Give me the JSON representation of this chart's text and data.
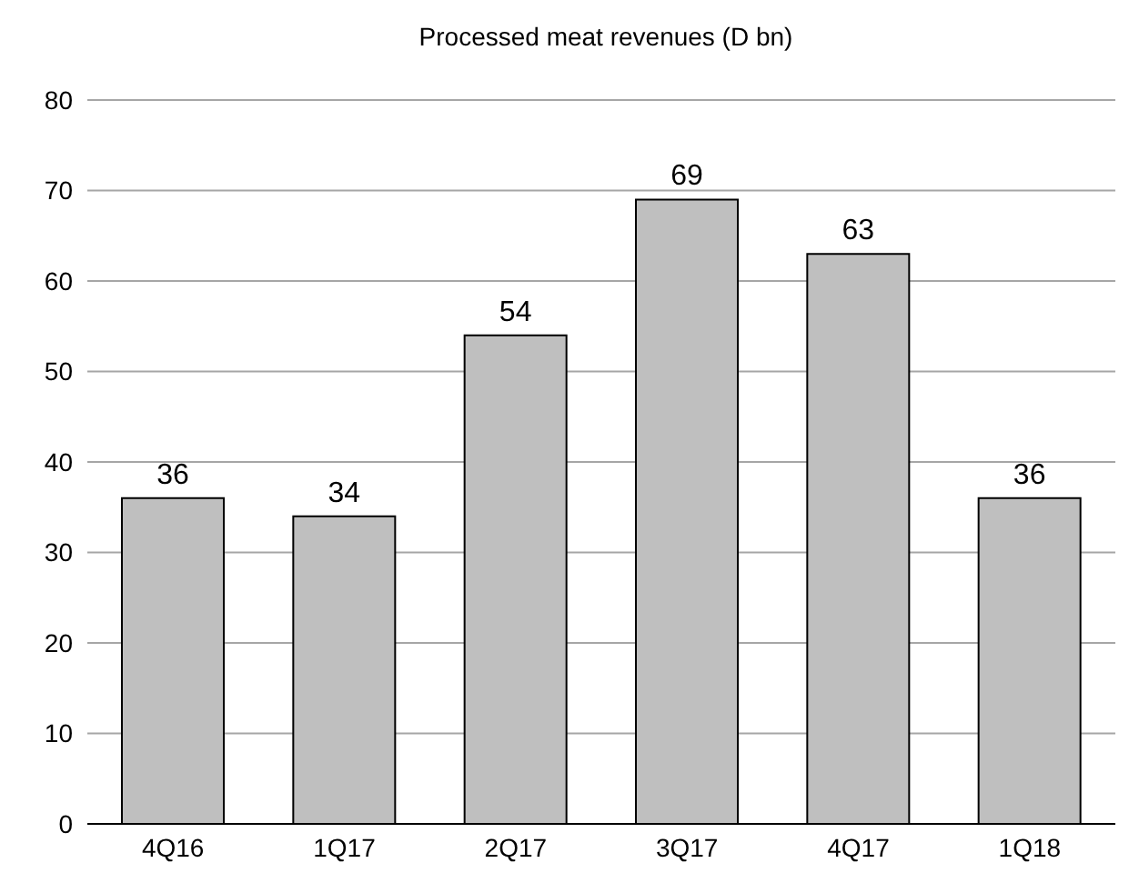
{
  "chart_data": {
    "type": "bar",
    "title": "Processed meat revenues (D bn)",
    "categories": [
      "4Q16",
      "1Q17",
      "2Q17",
      "3Q17",
      "4Q17",
      "1Q18"
    ],
    "values": [
      36,
      34,
      54,
      69,
      63,
      36
    ],
    "color": "#bfbfbf",
    "ylim": [
      0,
      80
    ],
    "yticks": [
      0,
      10,
      20,
      30,
      40,
      50,
      60,
      70,
      80
    ],
    "grid": "y",
    "data_labels": true
  }
}
